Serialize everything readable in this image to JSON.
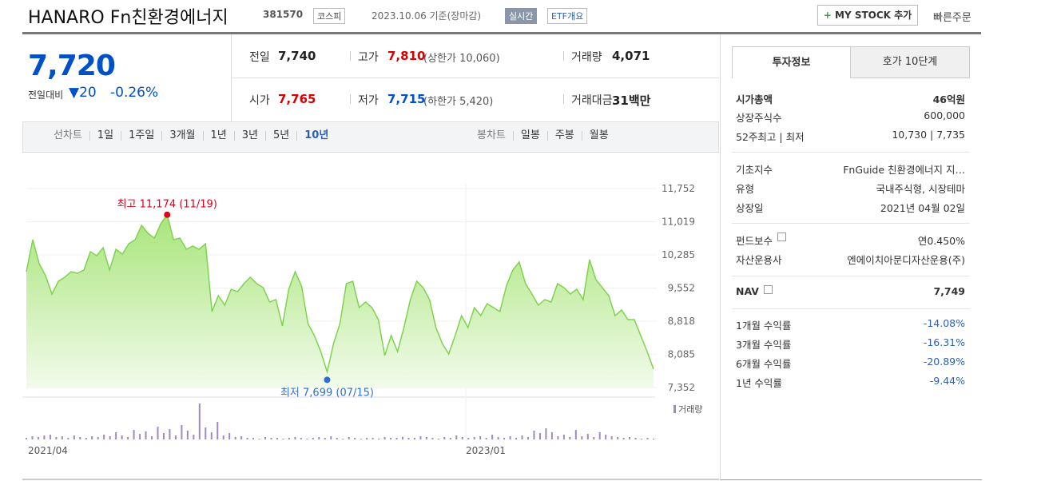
{
  "header": {
    "title": "HANARO Fn친환경에너지",
    "code": "381570",
    "market": "코스피",
    "date": "2023.10.06 기준(장마감)",
    "realtime": "실시간",
    "etf_overview": "ETF개요",
    "my_stock": "MY STOCK 추가",
    "quick_order": "빠른주문"
  },
  "quote": {
    "price": "7,720",
    "change_label": "전일대비",
    "change": "20",
    "change_pct": "-0.26%",
    "items": [
      {
        "label": "전일",
        "value": "7,740"
      },
      {
        "label": "고가",
        "value": "7,810",
        "extra": "(상한가 10,060)"
      },
      {
        "label": "거래량",
        "value": "4,071"
      },
      {
        "label": "시가",
        "value": "7,765"
      },
      {
        "label": "저가",
        "value": "7,715",
        "extra": "(하한가 5,420)"
      },
      {
        "label": "거래대금",
        "value": "31백만"
      }
    ]
  },
  "chart_tabs": {
    "line_label": "선차트",
    "line": [
      "1일",
      "1주일",
      "3개월",
      "1년",
      "3년",
      "5년",
      "10년"
    ],
    "candle_label": "봉차트",
    "candle": [
      "일봉",
      "주봉",
      "월봉"
    ]
  },
  "price_chart": {
    "type": "line",
    "color": "#7ed34f",
    "values": [
      9914,
      10621,
      10091,
      9826,
      9419,
      9702,
      9791,
      9914,
      9879,
      9950,
      10356,
      10268,
      10444,
      9950,
      10409,
      10303,
      10533,
      10621,
      10939,
      10762,
      10656,
      10974,
      11174,
      10621,
      10656,
      10409,
      10480,
      10409,
      10533,
      9031,
      9384,
      9172,
      9525,
      9472,
      9649,
      9791,
      9649,
      9561,
      9243,
      9296,
      8713,
      9525,
      9914,
      9596,
      8766,
      8501,
      8147,
      7699,
      8324,
      8766,
      9649,
      9702,
      9119,
      9243,
      9119,
      8854,
      8059,
      8501,
      8147,
      8677,
      9296,
      9702,
      9561,
      9296,
      8677,
      8324,
      8094,
      8501,
      8942,
      8677,
      9119,
      8942,
      9207,
      9119,
      9031,
      9596,
      9950,
      10126,
      9649,
      9419,
      9172,
      9296,
      9243,
      9649,
      9561,
      9419,
      9525,
      9296,
      10180,
      9737,
      9561,
      9384,
      8942,
      9066,
      8854,
      8854,
      8501,
      8147,
      7758
    ],
    "ylim": [
      7352,
      11752
    ],
    "yticks": [
      {
        "value": 11752,
        "label": "11,752"
      },
      {
        "value": 11019,
        "label": "11,019"
      },
      {
        "value": 10285,
        "label": "10,285"
      },
      {
        "value": 9552,
        "label": "9,552"
      },
      {
        "value": 8818,
        "label": "8,818"
      },
      {
        "value": 8085,
        "label": "8,085"
      },
      {
        "value": 7352,
        "label": "7,352"
      }
    ],
    "annotations": {
      "high": "최고 11,174 (11/19)",
      "low": "최저 7,699 (07/15)"
    },
    "x_labels": [
      "2021/04",
      "2023/01"
    ]
  },
  "volume_chart": {
    "type": "bar",
    "label": "거래량",
    "color": "#9e88c5",
    "ylim": [
      0,
      45
    ],
    "values": [
      2,
      4,
      3,
      5,
      6,
      3,
      4,
      2,
      5,
      3,
      2,
      4,
      3,
      6,
      4,
      9,
      5,
      3,
      12,
      7,
      10,
      4,
      16,
      8,
      13,
      5,
      18,
      11,
      6,
      45,
      15,
      9,
      22,
      5,
      8,
      3,
      4,
      2,
      2,
      1,
      3,
      2,
      2,
      1,
      2,
      3,
      2,
      1,
      2,
      3,
      2,
      4,
      2,
      1,
      3,
      2,
      1,
      2,
      2,
      1,
      3,
      2,
      2,
      3,
      2,
      2,
      4,
      3,
      2,
      1,
      3,
      2,
      5,
      3,
      2,
      3,
      4,
      2,
      6,
      3,
      2,
      4,
      2,
      5,
      3,
      11,
      8,
      14,
      9,
      4,
      6,
      3,
      12,
      4,
      7,
      3,
      9,
      6,
      4,
      3,
      2,
      3,
      2,
      1,
      2,
      1
    ]
  },
  "info": {
    "tabs": [
      "투자정보",
      "호가 10단계"
    ],
    "groups": [
      [
        {
          "label": "시가총액",
          "value": "46억원"
        },
        {
          "label": "상장주식수",
          "value": "600,000"
        },
        {
          "label": "52주최고 | 최저",
          "value": "10,730 | 7,735"
        }
      ],
      [
        {
          "label": "기초지수",
          "value": "FnGuide 친환경에너지 지…"
        },
        {
          "label": "유형",
          "value": "국내주식형, 시장테마"
        },
        {
          "label": "상장일",
          "value": "2021년 04월 02일"
        }
      ],
      [
        {
          "label": "펀드보수",
          "value": "연0.450%"
        },
        {
          "label": "자산운용사",
          "value": "엔에이치아문디자산운용(주)"
        }
      ],
      [
        {
          "label": "NAV",
          "value": "7,749"
        }
      ],
      [
        {
          "label": "1개월 수익률",
          "value": "-14.08%"
        },
        {
          "label": "3개월 수익률",
          "value": "-16.31%"
        },
        {
          "label": "6개월 수익률",
          "value": "-20.89%"
        },
        {
          "label": "1년 수익률",
          "value": "-9.44%"
        }
      ]
    ]
  }
}
